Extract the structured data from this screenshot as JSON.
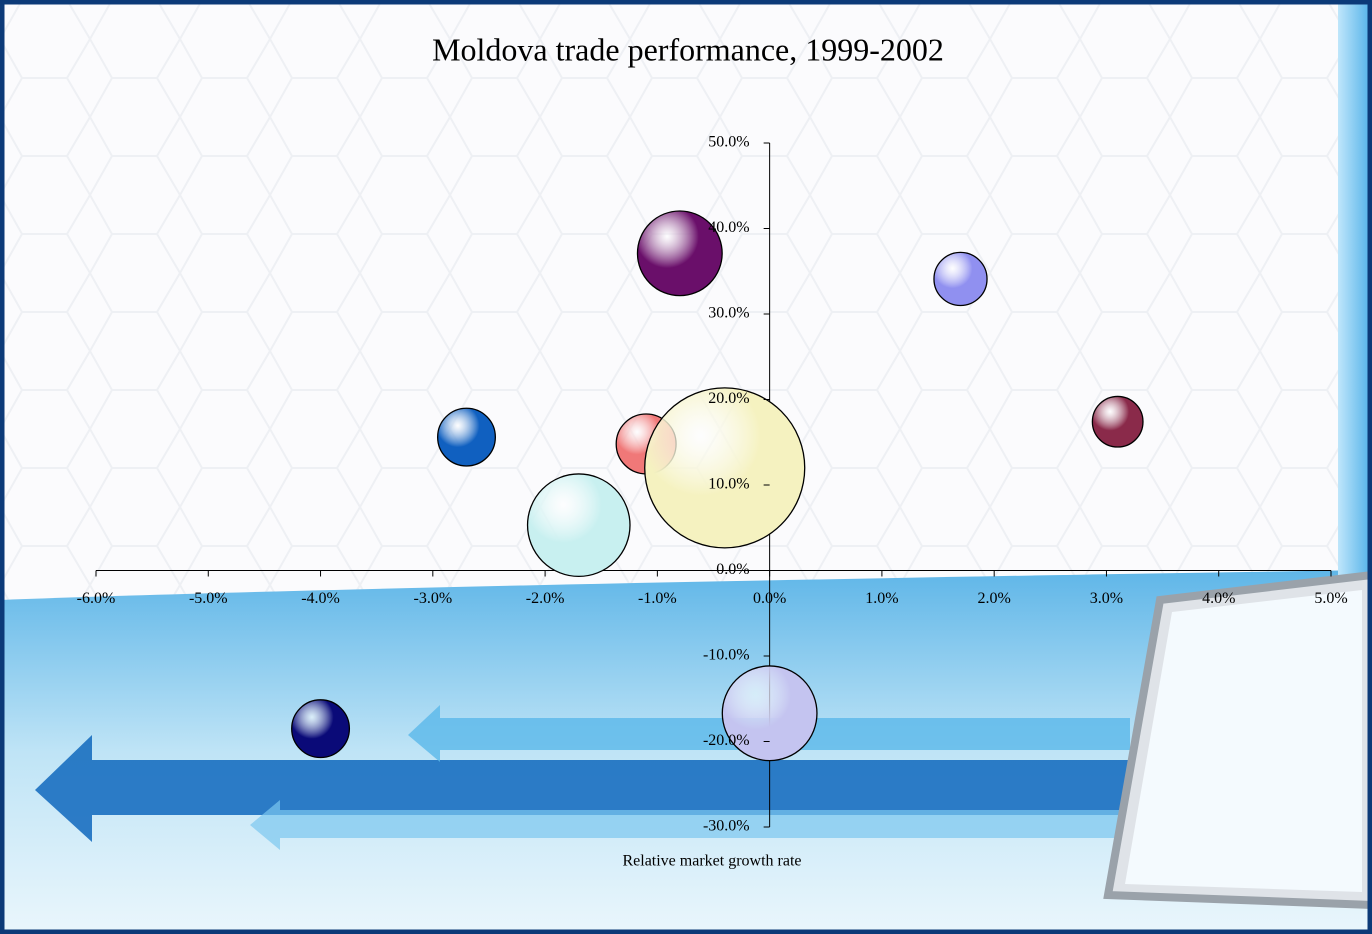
{
  "chart_data": {
    "type": "bubble",
    "title": "Moldova trade performance, 1999-2002",
    "x_label": "Relative market growth rate",
    "x": [
      -0.8,
      1.7,
      3.1,
      -2.7,
      -1.1,
      -0.4,
      -1.7,
      0.0,
      -4.0
    ],
    "values": [
      37.1,
      34.1,
      17.4,
      15.6,
      14.8,
      12.0,
      5.3,
      -16.7,
      -18.5
    ],
    "sizes": [
      28,
      11,
      10,
      13,
      14,
      100,
      41,
      35,
      13
    ],
    "colors": [
      "#6a0f6a",
      "#9090f0",
      "#8a2a4a",
      "#1060c0",
      "#f07878",
      "#f5f2c0",
      "#c8f0f0",
      "#c4c4f0",
      "#0a0a78"
    ],
    "xlim": [
      -6,
      5
    ],
    "xticks": [
      {
        "value": -6,
        "label": "-6.0%"
      },
      {
        "value": -5,
        "label": "-5.0%"
      },
      {
        "value": -4,
        "label": "-4.0%"
      },
      {
        "value": -3,
        "label": "-3.0%"
      },
      {
        "value": -2,
        "label": "-2.0%"
      },
      {
        "value": -1,
        "label": "-1.0%"
      },
      {
        "value": 0,
        "label": "0.0%"
      },
      {
        "value": 1,
        "label": "1.0%"
      },
      {
        "value": 2,
        "label": "2.0%"
      },
      {
        "value": 3,
        "label": "3.0%"
      },
      {
        "value": 4,
        "label": "4.0%"
      },
      {
        "value": 5,
        "label": "5.0%"
      }
    ],
    "ylim": [
      -30,
      50
    ],
    "yticks": [
      {
        "value": -30,
        "label": "-30.0%"
      },
      {
        "value": -20,
        "label": "-20.0%"
      },
      {
        "value": -10,
        "label": "-10.0%"
      },
      {
        "value": 0,
        "label": "0.0%"
      },
      {
        "value": 10,
        "label": "10.0%"
      },
      {
        "value": 20,
        "label": "20.0%"
      },
      {
        "value": 30,
        "label": "30.0%"
      },
      {
        "value": 40,
        "label": "40.0%"
      },
      {
        "value": 50,
        "label": "50.0%"
      }
    ]
  }
}
